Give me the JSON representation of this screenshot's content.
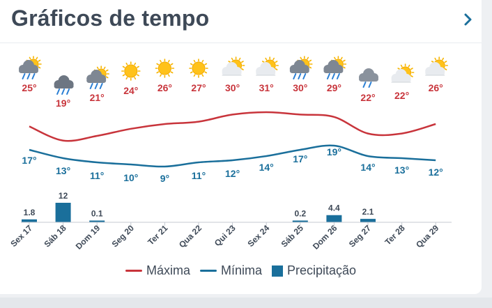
{
  "header": {
    "title": "Gráficos de tempo",
    "next_icon": "chevron-right-icon"
  },
  "colors": {
    "max": "#c8343b",
    "min": "#1a6f9b",
    "precip": "#1a6f9b",
    "text": "#3e4957"
  },
  "days": [
    {
      "label": "Sex 17",
      "icon": "rain-sun",
      "max": 25,
      "max_label": "25°",
      "min": 17,
      "min_label": "17°",
      "precip": 1.8,
      "precip_label": "1.8"
    },
    {
      "label": "Sáb 18",
      "icon": "heavy-rain",
      "max": 19,
      "max_label": "19°",
      "min": 13,
      "min_label": "13°",
      "precip": 12,
      "precip_label": "12"
    },
    {
      "label": "Dom 19",
      "icon": "rain-sun",
      "max": 21,
      "max_label": "21°",
      "min": 11,
      "min_label": "11°",
      "precip": 0.1,
      "precip_label": "0.1"
    },
    {
      "label": "Seg 20",
      "icon": "sun",
      "max": 24,
      "max_label": "24°",
      "min": 10,
      "min_label": "10°",
      "precip": 0,
      "precip_label": ""
    },
    {
      "label": "Ter 21",
      "icon": "sun",
      "max": 26,
      "max_label": "26°",
      "min": 9,
      "min_label": "9°",
      "precip": 0,
      "precip_label": ""
    },
    {
      "label": "Qua 22",
      "icon": "sun",
      "max": 27,
      "max_label": "27°",
      "min": 11,
      "min_label": "11°",
      "precip": 0,
      "precip_label": ""
    },
    {
      "label": "Qui 23",
      "icon": "partly-cloudy",
      "max": 30,
      "max_label": "30°",
      "min": 12,
      "min_label": "12°",
      "precip": 0,
      "precip_label": ""
    },
    {
      "label": "Sex 24",
      "icon": "partly-cloudy",
      "max": 31,
      "max_label": "31°",
      "min": 14,
      "min_label": "14°",
      "precip": 0,
      "precip_label": ""
    },
    {
      "label": "Sáb 25",
      "icon": "rain-sun",
      "max": 30,
      "max_label": "30°",
      "min": 17,
      "min_label": "17°",
      "precip": 0.2,
      "precip_label": "0.2"
    },
    {
      "label": "Dom 26",
      "icon": "rain-sun",
      "max": 29,
      "max_label": "29°",
      "min": 19,
      "min_label": "19°",
      "precip": 4.4,
      "precip_label": "4.4"
    },
    {
      "label": "Seg 27",
      "icon": "rain-cloud",
      "max": 22,
      "max_label": "22°",
      "min": 14,
      "min_label": "14°",
      "precip": 2.1,
      "precip_label": "2.1"
    },
    {
      "label": "Ter 28",
      "icon": "partly-cloudy",
      "max": 22,
      "max_label": "22°",
      "min": 13,
      "min_label": "13°",
      "precip": 0,
      "precip_label": ""
    },
    {
      "label": "Qua 29",
      "icon": "partly-cloudy",
      "max": 26,
      "max_label": "26°",
      "min": 12,
      "min_label": "12°",
      "precip": 0,
      "precip_label": ""
    }
  ],
  "chart_data": {
    "type": "line",
    "title": "Gráficos de tempo",
    "categories": [
      "Sex 17",
      "Sáb 18",
      "Dom 19",
      "Seg 20",
      "Ter 21",
      "Qua 22",
      "Qui 23",
      "Sex 24",
      "Sáb 25",
      "Dom 26",
      "Seg 27",
      "Ter 28",
      "Qua 29"
    ],
    "series": [
      {
        "name": "Máxima",
        "unit": "°C",
        "values": [
          25,
          19,
          21,
          24,
          26,
          27,
          30,
          31,
          30,
          29,
          22,
          22,
          26
        ]
      },
      {
        "name": "Mínima",
        "unit": "°C",
        "values": [
          17,
          13,
          11,
          10,
          9,
          11,
          12,
          14,
          17,
          19,
          14,
          13,
          12
        ]
      },
      {
        "name": "Precipitação",
        "unit": "mm",
        "type": "bar",
        "values": [
          1.8,
          12,
          0.1,
          0,
          0,
          0,
          0,
          0,
          0.2,
          4.4,
          2.1,
          0,
          0
        ]
      }
    ],
    "legend_position": "bottom-center",
    "grid": false
  },
  "legend": {
    "max_label": "Máxima",
    "min_label": "Mínima",
    "precip_label": "Precipitação"
  }
}
